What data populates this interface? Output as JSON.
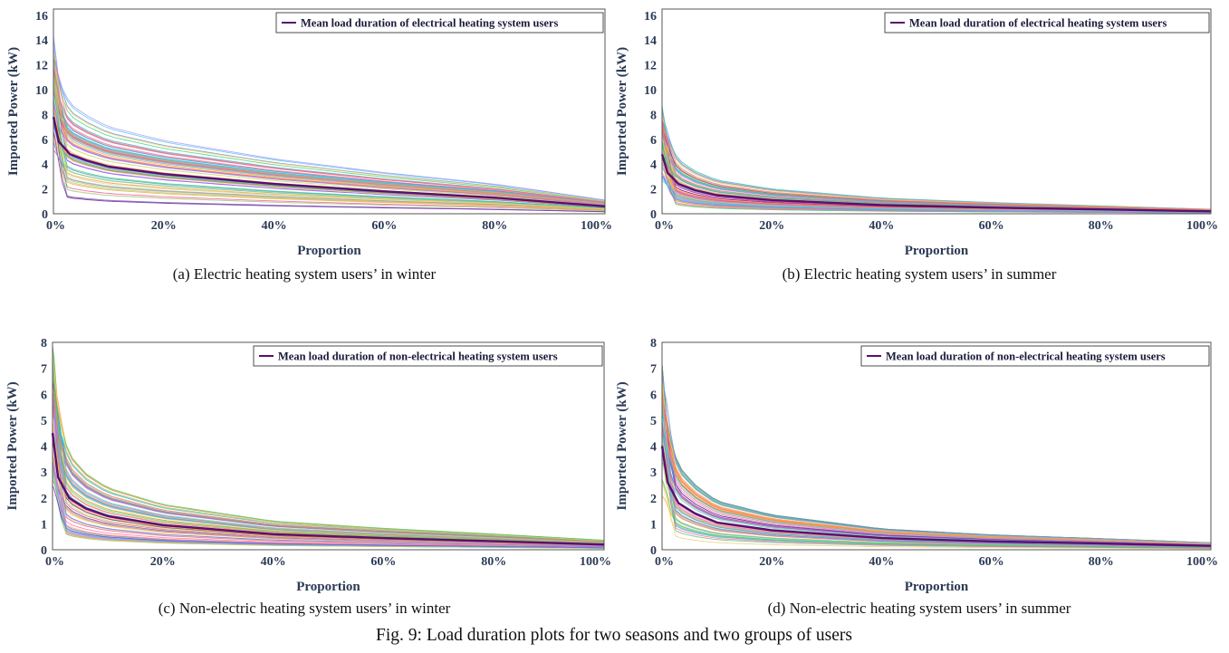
{
  "figure_caption": "Fig. 9: Load duration plots for two seasons and two groups of users",
  "chart_data": [
    {
      "type": "line",
      "subcaption": "(a) Electric heating system users’ in winter",
      "xlabel": "Proportion",
      "ylabel": "Imported Power (kW)",
      "xlim": [
        0,
        100
      ],
      "ylim": [
        0,
        16.5
      ],
      "x_ticks": [
        "0%",
        "20%",
        "40%",
        "60%",
        "80%",
        "100%"
      ],
      "y_ticks": [
        "0",
        "2",
        "4",
        "6",
        "8",
        "10",
        "12",
        "14",
        "16"
      ],
      "y_tick_values": [
        0,
        2,
        4,
        6,
        8,
        10,
        12,
        14,
        16
      ],
      "legend": "Mean load duration of electrical heating system users",
      "legend_position": "top-right",
      "mean_color": "#5a0f6e",
      "series": [
        {
          "name": "Mean load duration of electrical heating system users",
          "x": [
            0,
            1,
            3,
            6,
            10,
            20,
            40,
            60,
            80,
            100
          ],
          "values": [
            7.8,
            5.8,
            4.8,
            4.3,
            3.8,
            3.2,
            2.4,
            1.8,
            1.3,
            0.6
          ]
        }
      ]
    },
    {
      "type": "line",
      "subcaption": "(b) Electric heating system users’ in summer",
      "xlabel": "Proportion",
      "ylabel": "Imported Power (kW)",
      "xlim": [
        0,
        100
      ],
      "ylim": [
        0,
        16.5
      ],
      "x_ticks": [
        "0%",
        "20%",
        "40%",
        "60%",
        "80%",
        "100%"
      ],
      "y_ticks": [
        "0",
        "2",
        "4",
        "6",
        "8",
        "10",
        "12",
        "14",
        "16"
      ],
      "y_tick_values": [
        0,
        2,
        4,
        6,
        8,
        10,
        12,
        14,
        16
      ],
      "legend": "Mean load duration of electrical heating system users",
      "legend_position": "top-right",
      "mean_color": "#5a0f6e",
      "series": [
        {
          "name": "Mean load duration of electrical heating system users",
          "x": [
            0,
            1,
            3,
            6,
            10,
            20,
            40,
            60,
            80,
            100
          ],
          "values": [
            4.8,
            3.3,
            2.4,
            1.9,
            1.5,
            1.1,
            0.7,
            0.5,
            0.35,
            0.2
          ]
        }
      ]
    },
    {
      "type": "line",
      "subcaption": "(c) Non-electric heating system users’ in winter",
      "xlabel": "Proportion",
      "ylabel": "Imported Power (kW)",
      "xlim": [
        0,
        100
      ],
      "ylim": [
        0,
        8
      ],
      "x_ticks": [
        "0%",
        "20%",
        "40%",
        "60%",
        "80%",
        "100%"
      ],
      "y_ticks": [
        "0",
        "1",
        "2",
        "3",
        "4",
        "5",
        "6",
        "7",
        "8"
      ],
      "y_tick_values": [
        0,
        1,
        2,
        3,
        4,
        5,
        6,
        7,
        8
      ],
      "legend": "Mean load duration of non-electrical heating system users",
      "legend_position": "top-right",
      "mean_color": "#5a0f6e",
      "series": [
        {
          "name": "Mean load duration of non-electrical heating system users",
          "x": [
            0,
            1,
            3,
            6,
            10,
            20,
            40,
            60,
            80,
            100
          ],
          "values": [
            4.5,
            2.8,
            2.0,
            1.6,
            1.3,
            0.95,
            0.6,
            0.45,
            0.33,
            0.2
          ]
        }
      ]
    },
    {
      "type": "line",
      "subcaption": "(d) Non-electric heating system users’ in summer",
      "xlabel": "Proportion",
      "ylabel": "Imported Power (kW)",
      "xlim": [
        0,
        100
      ],
      "ylim": [
        0,
        8
      ],
      "x_ticks": [
        "0%",
        "20%",
        "40%",
        "60%",
        "80%",
        "100%"
      ],
      "y_ticks": [
        "0",
        "1",
        "2",
        "3",
        "4",
        "5",
        "6",
        "7",
        "8"
      ],
      "y_tick_values": [
        0,
        1,
        2,
        3,
        4,
        5,
        6,
        7,
        8
      ],
      "legend": "Mean load duration of non-electrical heating system users",
      "legend_position": "top-right",
      "mean_color": "#5a0f6e",
      "series": [
        {
          "name": "Mean load duration of non-electrical heating system users",
          "x": [
            0,
            1,
            3,
            6,
            10,
            20,
            40,
            60,
            80,
            100
          ],
          "values": [
            4.0,
            2.6,
            1.8,
            1.4,
            1.05,
            0.75,
            0.45,
            0.32,
            0.24,
            0.15
          ]
        }
      ]
    }
  ]
}
